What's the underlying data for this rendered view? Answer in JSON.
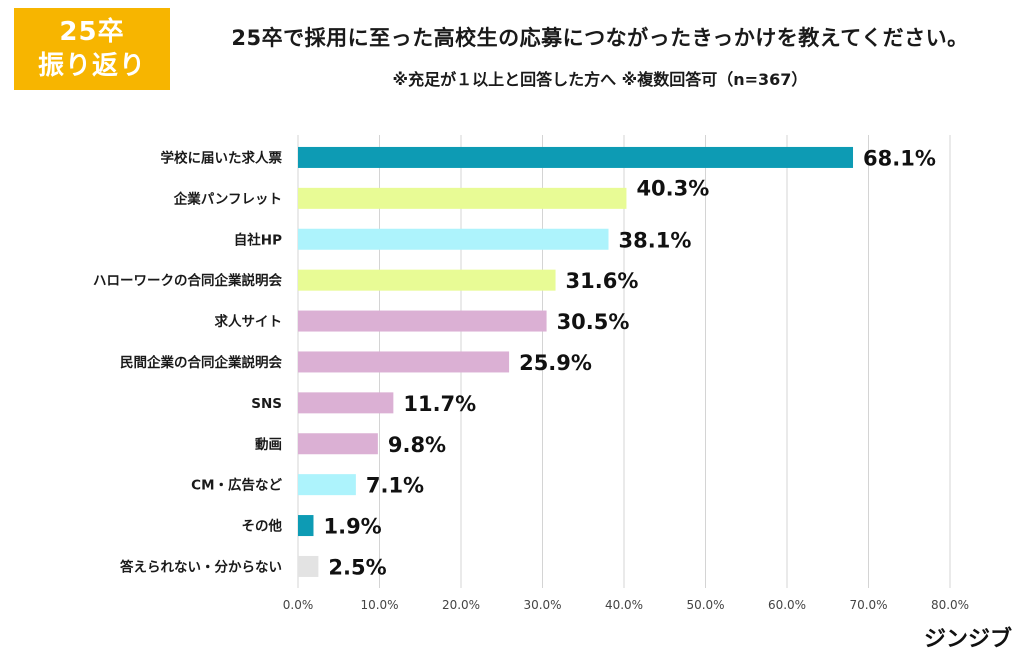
{
  "header": {
    "badge_line1": "25卒",
    "badge_line2": "振り返り",
    "title": "25卒で採用に至った高校生の応募につながったきっかけを教えてください。",
    "subtitle": "※充足が１以上と回答した方へ ※複数回答可（n=367）",
    "brand": "ジンジブ"
  },
  "colors": {
    "badge": "#f7b500",
    "teal": "#0d9bb4",
    "lime": "#e8fb95",
    "cyan": "#adf3fc",
    "pink": "#dbb0d4",
    "gray": "#e3e3e3"
  },
  "chart_data": {
    "type": "bar",
    "orientation": "horizontal",
    "categories": [
      "学校に届いた求人票",
      "企業パンフレット",
      "自社HP",
      "ハローワークの合同企業説明会",
      "求人サイト",
      "民間企業の合同企業説明会",
      "SNS",
      "動画",
      "CM・広告など",
      "その他",
      "答えられない・分からない"
    ],
    "values": [
      68.1,
      40.3,
      38.1,
      31.6,
      30.5,
      25.9,
      11.7,
      9.8,
      7.1,
      1.9,
      2.5
    ],
    "data_labels": [
      "68.1%",
      "40.3%",
      "38.1%",
      "31.6%",
      "30.5%",
      "25.9%",
      "11.7%",
      "9.8%",
      "7.1%",
      "1.9%",
      "2.5%"
    ],
    "bar_colors": [
      "#0d9bb4",
      "#e8fb95",
      "#adf3fc",
      "#e8fb95",
      "#dbb0d4",
      "#dbb0d4",
      "#dbb0d4",
      "#dbb0d4",
      "#adf3fc",
      "#0d9bb4",
      "#e3e3e3"
    ],
    "xlim": [
      0,
      80
    ],
    "xticks": [
      "0.0%",
      "10.0%",
      "20.0%",
      "30.0%",
      "40.0%",
      "50.0%",
      "60.0%",
      "70.0%",
      "80.0%"
    ],
    "grid": true,
    "legend": "none"
  }
}
